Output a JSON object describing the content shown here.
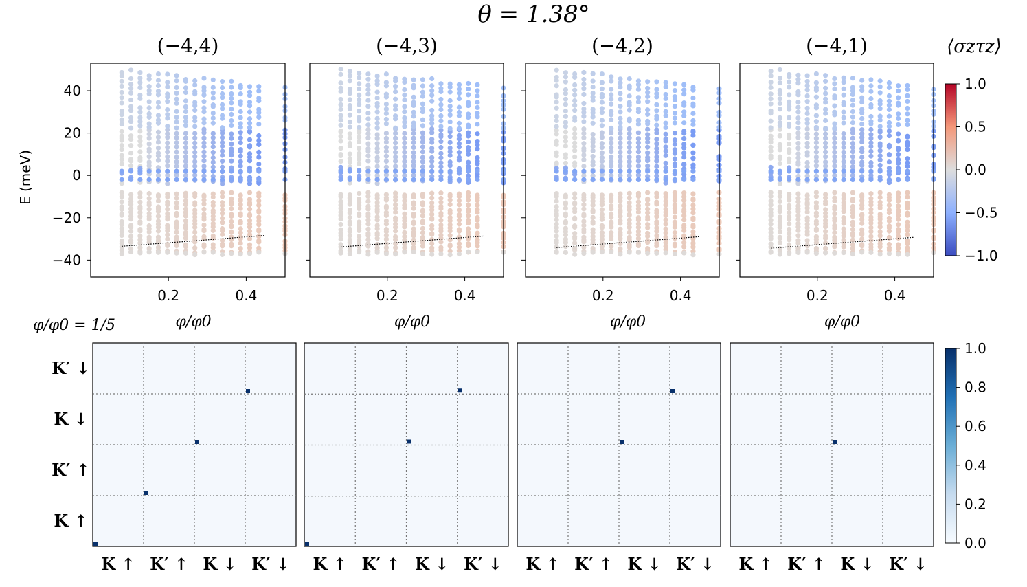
{
  "figure_title": "θ = 1.38°",
  "chart_data": [
    {
      "type": "scatter",
      "title": "(−4,4)",
      "xlabel": "φ/φ0",
      "ylabel": "E (meV)",
      "xlim": [
        0,
        0.5
      ],
      "ylim": [
        -48,
        53
      ],
      "xticks": [
        "0.2",
        "0.4"
      ],
      "yticks": [
        "40",
        "20",
        "0",
        "−20",
        "−40"
      ],
      "colorbar_label": "⟨σzτz⟩",
      "colorbar_ticks": [
        "1.0",
        "0.5",
        "0.0",
        "−0.5",
        "−1.0"
      ]
    },
    {
      "type": "scatter",
      "title": "(−4,3)",
      "xlabel": "φ/φ0",
      "xlim": [
        0,
        0.5
      ],
      "ylim": [
        -48,
        53
      ],
      "xticks": [
        "0.2",
        "0.4"
      ]
    },
    {
      "type": "scatter",
      "title": "(−4,2)",
      "xlabel": "φ/φ0",
      "xlim": [
        0,
        0.5
      ],
      "ylim": [
        -48,
        53
      ],
      "xticks": [
        "0.2",
        "0.4"
      ]
    },
    {
      "type": "scatter",
      "title": "(−4,1)",
      "xlabel": "φ/φ0",
      "xlim": [
        0,
        0.5
      ],
      "ylim": [
        -48,
        53
      ],
      "xticks": [
        "0.2",
        "0.4"
      ]
    }
  ],
  "matrix_panel_label": "φ/φ0 = 1/5",
  "matrix_row_labels": [
    "K′ ↓",
    "K ↓",
    "K′ ↑",
    "K ↑"
  ],
  "matrix_col_labels": [
    "K ↑",
    "K′ ↑",
    "K ↓",
    "K′ ↓"
  ],
  "matrix_colorbar_ticks": [
    "1.0",
    "0.8",
    "0.6",
    "0.4",
    "0.2",
    "0.0"
  ],
  "matrix_nonzero_blocks": [
    [
      0,
      1,
      2,
      3
    ],
    [
      0,
      2,
      3
    ],
    [
      2,
      3
    ],
    [
      2
    ]
  ]
}
